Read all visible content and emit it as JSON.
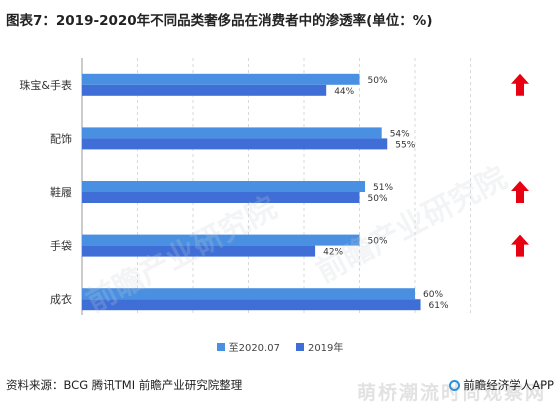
{
  "title": "图表7：2019-2020年不同品类奢侈品在消费者中的渗透率(单位：%)",
  "chart_data": {
    "type": "bar",
    "orientation": "horizontal",
    "categories": [
      "珠宝&手表",
      "配饰",
      "鞋履",
      "手袋",
      "成衣"
    ],
    "series": [
      {
        "name": "至2020.07",
        "color": "#4a90e2",
        "values": [
          50,
          54,
          51,
          50,
          60
        ],
        "labels": [
          "50%",
          "54%",
          "51%",
          "50%",
          "60%"
        ]
      },
      {
        "name": "2019年",
        "color": "#3f6fd6",
        "values": [
          44,
          55,
          50,
          42,
          61
        ],
        "labels": [
          "44%",
          "55%",
          "50%",
          "42%",
          "61%"
        ]
      }
    ],
    "xlim": [
      0,
      70
    ],
    "grid": "vertical dashed",
    "legend_position": "bottom-center",
    "up_arrows": [
      true,
      false,
      true,
      true,
      false
    ],
    "arrow_color": "#e60012"
  },
  "source": "资料来源：BCG 腾讯TMI 前瞻产业研究院整理",
  "brand": "前瞻经济学人APP",
  "watermark": "萌桥潮流时尚观察网"
}
